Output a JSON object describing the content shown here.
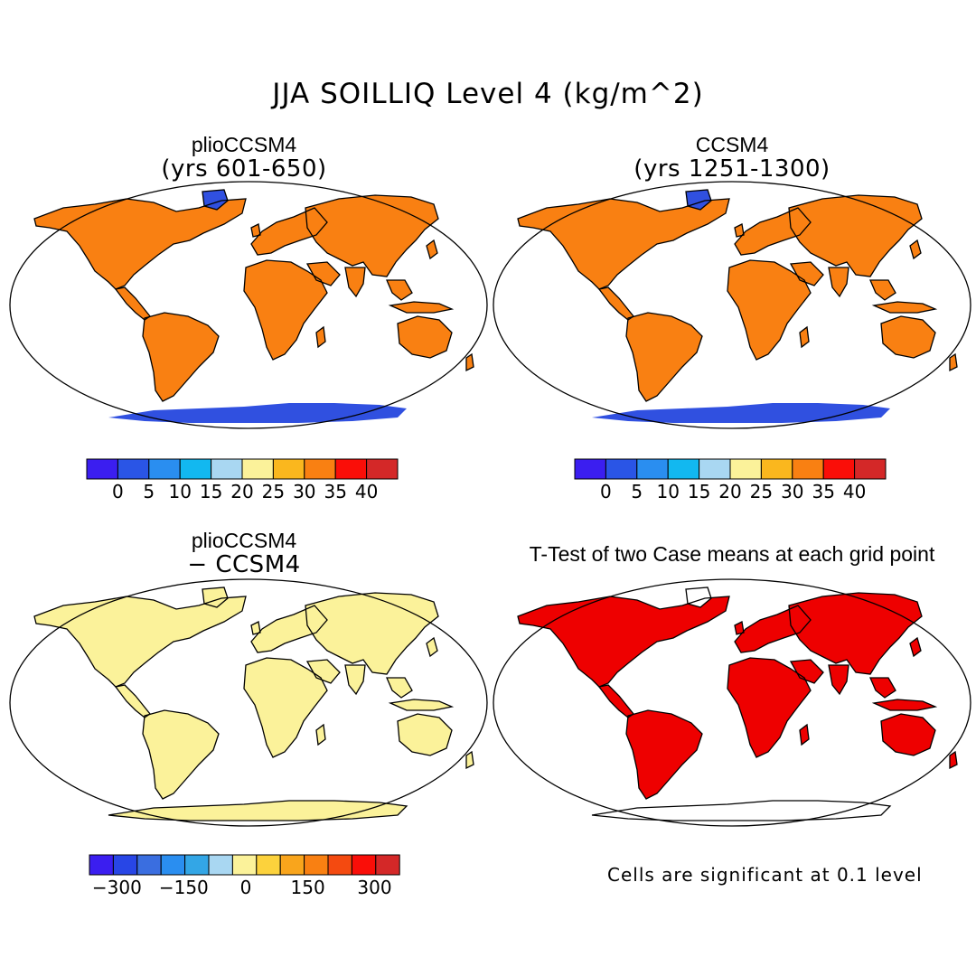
{
  "figure": {
    "title": "JJA SOILLIQ Level 4 (kg/m^2)",
    "colors": {
      "blue_dark": "#3b1ef0",
      "land_fill_diff": "#fbf29a",
      "land_neg_diff": "#a9d7f2",
      "significant": "#ee0000",
      "antarctica": "#3050e0"
    }
  },
  "panels": [
    {
      "id": "top-left",
      "title": "plioCCSM4",
      "subtitle": "(yrs 601-650)",
      "field": "mean soil liquid",
      "colorbar": {
        "ticks": [
          "0",
          "5",
          "10",
          "15",
          "20",
          "25",
          "30",
          "35",
          "40"
        ],
        "colors": [
          "#3b1ef0",
          "#2a55e6",
          "#2a8ef0",
          "#12b8f0",
          "#a9d7f2",
          "#fbf29a",
          "#fab71e",
          "#f98012",
          "#fa0e08",
          "#d42828"
        ]
      }
    },
    {
      "id": "top-right",
      "title": "CCSM4",
      "subtitle": "(yrs 1251-1300)",
      "field": "mean soil liquid",
      "colorbar": {
        "ticks": [
          "0",
          "5",
          "10",
          "15",
          "20",
          "25",
          "30",
          "35",
          "40"
        ],
        "colors": [
          "#3b1ef0",
          "#2a55e6",
          "#2a8ef0",
          "#12b8f0",
          "#a9d7f2",
          "#fbf29a",
          "#fab71e",
          "#f98012",
          "#fa0e08",
          "#d42828"
        ]
      }
    },
    {
      "id": "bottom-left",
      "title": "plioCCSM4",
      "subtitle": "− CCSM4",
      "field": "difference",
      "colorbar": {
        "ticks": [
          "−300",
          "−150",
          "0",
          "150",
          "300"
        ],
        "colors": [
          "#3b1ef0",
          "#2846e6",
          "#3a6ee0",
          "#2a8ef0",
          "#33a6e6",
          "#a9d7f2",
          "#fbf29a",
          "#fcd23c",
          "#f9a51c",
          "#f98012",
          "#f44a10",
          "#fa0e08",
          "#d42828"
        ]
      }
    },
    {
      "id": "bottom-right",
      "title": "T-Test of two Case means at each grid point",
      "note": "Cells are significant at 0.1 level",
      "field": "significance"
    }
  ]
}
